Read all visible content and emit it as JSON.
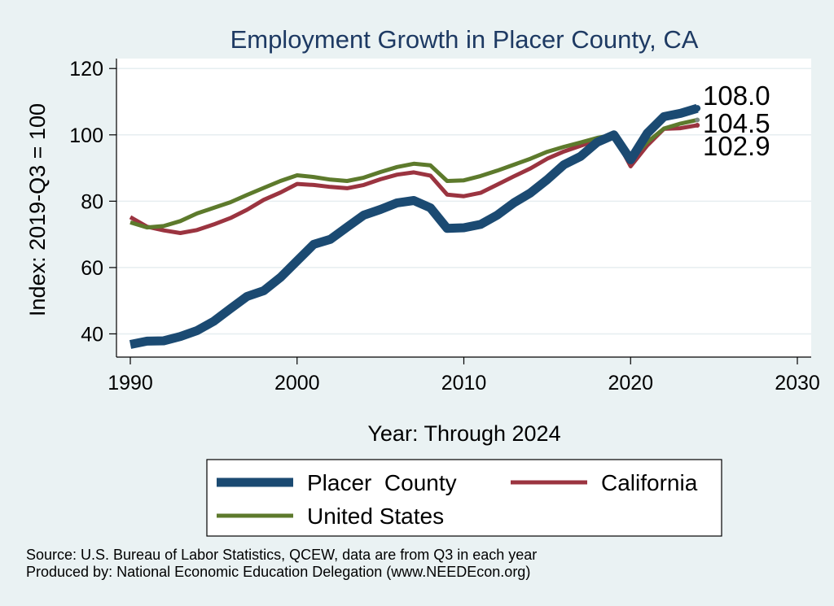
{
  "chart_data": {
    "type": "line",
    "title": "Employment Growth in Placer County, CA",
    "xlabel": "Year: Through 2024",
    "ylabel": "Index: 2019-Q3 = 100",
    "xlim": [
      1990,
      2030
    ],
    "ylim": [
      33,
      123
    ],
    "x_ticks": [
      1990,
      2000,
      2010,
      2020,
      2030
    ],
    "y_ticks": [
      40,
      60,
      80,
      100,
      120
    ],
    "grid": "horizontal",
    "legend_position": "bottom",
    "x": [
      1990,
      1991,
      1992,
      1993,
      1994,
      1995,
      1996,
      1997,
      1998,
      1999,
      2000,
      2001,
      2002,
      2003,
      2004,
      2005,
      2006,
      2007,
      2008,
      2009,
      2010,
      2011,
      2012,
      2013,
      2014,
      2015,
      2016,
      2017,
      2018,
      2019,
      2020,
      2021,
      2022,
      2023,
      2024
    ],
    "series": [
      {
        "name": "Placer  County",
        "color": "#1b4a72",
        "values": [
          36.8,
          37.8,
          37.9,
          39.2,
          41.0,
          43.8,
          47.6,
          51.3,
          53.0,
          57.0,
          62.0,
          67.0,
          68.5,
          72.2,
          75.8,
          77.5,
          79.5,
          80.2,
          78.0,
          71.8,
          72.0,
          73.0,
          75.8,
          79.5,
          82.5,
          86.5,
          91.0,
          93.5,
          97.8,
          100.0,
          92.5,
          100.5,
          105.5,
          106.5,
          108.0
        ]
      },
      {
        "name": "California",
        "color": "#9b3440",
        "values": [
          75.2,
          72.3,
          71.2,
          70.4,
          71.3,
          73.0,
          74.9,
          77.4,
          80.4,
          82.6,
          85.2,
          84.9,
          84.3,
          83.9,
          84.9,
          86.6,
          88.0,
          88.7,
          87.7,
          82.0,
          81.5,
          82.5,
          85.0,
          87.5,
          89.9,
          92.8,
          95.0,
          96.7,
          98.5,
          100.0,
          90.5,
          96.8,
          101.8,
          102.0,
          102.9
        ]
      },
      {
        "name": "United States",
        "color": "#5d7a2c",
        "values": [
          73.6,
          72.1,
          72.5,
          74.0,
          76.3,
          78.0,
          79.7,
          81.9,
          84.0,
          86.1,
          87.8,
          87.3,
          86.5,
          86.1,
          87.1,
          88.8,
          90.3,
          91.3,
          90.8,
          86.1,
          86.3,
          87.6,
          89.2,
          91.0,
          92.8,
          94.9,
          96.4,
          97.7,
          99.1,
          100.0,
          92.5,
          97.8,
          101.9,
          103.4,
          104.5
        ]
      }
    ],
    "end_labels": [
      "108.0",
      "104.5",
      "102.9"
    ],
    "legend_entries": [
      "Placer  County",
      "California",
      "United States"
    ]
  },
  "source_text": "Source: U.S. Bureau of Labor Statistics, QCEW, data are from Q3 in each year",
  "produced_text": "Produced by: National Economic Education Delegation (www.NEEDEcon.org)"
}
